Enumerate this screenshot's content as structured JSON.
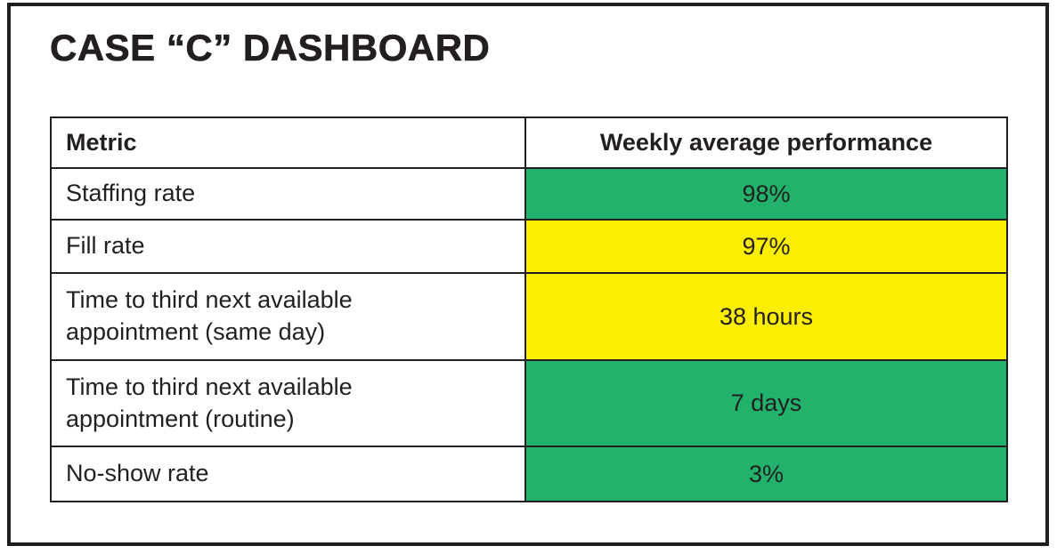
{
  "page": {
    "title": "CASE “C” DASHBOARD"
  },
  "colors": {
    "green": "#23b26b",
    "yellow": "#fcee00",
    "border": "#231f20",
    "text": "#231f20",
    "background": "#ffffff"
  },
  "table": {
    "columns": [
      {
        "label": "Metric"
      },
      {
        "label": "Weekly average performance"
      }
    ],
    "rows": [
      {
        "metric": "Staffing rate",
        "value": "98%",
        "status": "green"
      },
      {
        "metric": "Fill rate",
        "value": "97%",
        "status": "yellow"
      },
      {
        "metric": "Time to third next available appointment (same day)",
        "value": "38 hours",
        "status": "yellow"
      },
      {
        "metric": "Time to third next available appointment (routine)",
        "value": "7 days",
        "status": "green"
      },
      {
        "metric": "No-show rate",
        "value": "3%",
        "status": "green"
      }
    ]
  },
  "chart_data": {
    "type": "table",
    "title": "CASE “C” DASHBOARD",
    "columns": [
      "Metric",
      "Weekly average performance"
    ],
    "rows": [
      [
        "Staffing rate",
        "98%"
      ],
      [
        "Fill rate",
        "97%"
      ],
      [
        "Time to third next available appointment (same day)",
        "38 hours"
      ],
      [
        "Time to third next available appointment (routine)",
        "7 days"
      ],
      [
        "No-show rate",
        "3%"
      ]
    ],
    "row_statuses": [
      "green",
      "yellow",
      "yellow",
      "green",
      "green"
    ],
    "status_colors": {
      "green": "#23b26b",
      "yellow": "#fcee00"
    },
    "legend_position": "none",
    "grid": "full-borders"
  }
}
